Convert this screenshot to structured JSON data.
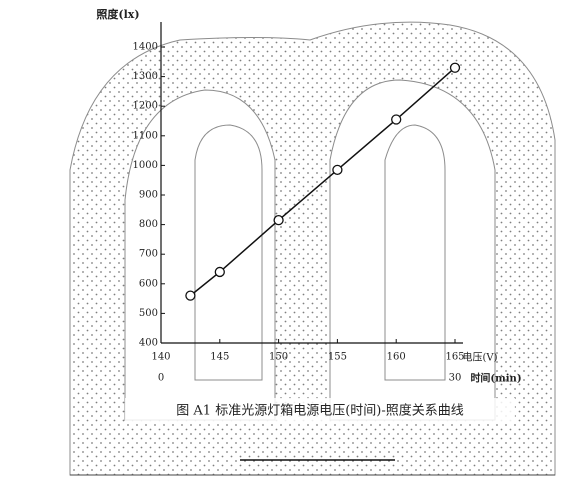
{
  "chart_data": {
    "type": "line",
    "y_label": "照度(lx)",
    "x_label": "电压(V)",
    "x2_label": "时间(min)",
    "caption": "图 A1   标准光源灯箱电源电压(时间)-照度关系曲线",
    "x": [
      142.5,
      145,
      150,
      155,
      160,
      165
    ],
    "series": [
      {
        "name": "照度",
        "color": "#111111",
        "values": [
          560,
          640,
          815,
          985,
          1155,
          1330
        ]
      }
    ],
    "xlim": [
      140,
      165
    ],
    "xticks": [
      140,
      145,
      150,
      155,
      160,
      165
    ],
    "x2lim": [
      0,
      30
    ],
    "x2ticks": [
      0,
      30
    ],
    "ylim": [
      400,
      1400
    ],
    "yticks": [
      400,
      500,
      600,
      700,
      800,
      900,
      1000,
      1100,
      1200,
      1300,
      1400
    ],
    "grid": false
  }
}
